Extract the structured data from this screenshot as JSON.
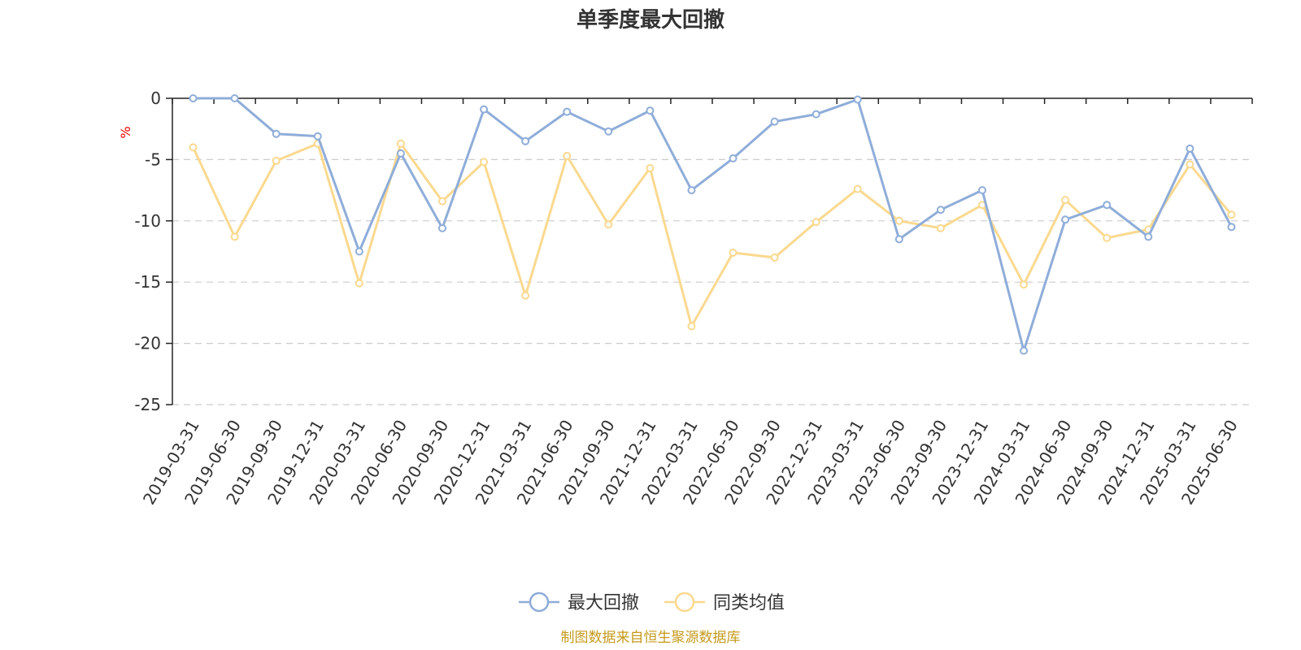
{
  "chart_data": {
    "type": "line",
    "title": "单季度最大回撤",
    "ylabel": "%",
    "ylim": [
      -25,
      0
    ],
    "yticks": [
      0,
      -5,
      -10,
      -15,
      -20,
      -25
    ],
    "grid": true,
    "legend_position": "bottom-center",
    "categories": [
      "2019-03-31",
      "2019-06-30",
      "2019-09-30",
      "2019-12-31",
      "2020-03-31",
      "2020-06-30",
      "2020-09-30",
      "2020-12-31",
      "2021-03-31",
      "2021-06-30",
      "2021-09-30",
      "2021-12-31",
      "2022-03-31",
      "2022-06-30",
      "2022-09-30",
      "2022-12-31",
      "2023-03-31",
      "2023-06-30",
      "2023-09-30",
      "2023-12-31",
      "2024-03-31",
      "2024-06-30",
      "2024-09-30",
      "2024-12-31",
      "2025-03-31",
      "2025-06-30"
    ],
    "series": [
      {
        "name": "最大回撤",
        "color": "#8fadd9",
        "values": [
          0,
          0,
          -2.9,
          -3.1,
          -12.5,
          -4.5,
          -10.6,
          -0.9,
          -3.5,
          -1.1,
          -2.7,
          -1.0,
          -7.5,
          -4.9,
          -1.9,
          -1.3,
          -0.1,
          -11.5,
          -9.1,
          -7.5,
          -20.6,
          -9.9,
          -8.7,
          -11.3,
          -4.1,
          -10.5
        ]
      },
      {
        "name": "同类均值",
        "color": "#fad98f",
        "values": [
          -4.0,
          -11.3,
          -5.1,
          -3.7,
          -15.1,
          -3.7,
          -8.4,
          -5.2,
          -16.1,
          -4.7,
          -10.3,
          -5.7,
          -18.6,
          -12.6,
          -13.0,
          -10.1,
          -7.4,
          -10.0,
          -10.6,
          -8.7,
          -15.2,
          -8.3,
          -11.4,
          -10.7,
          -5.4,
          -9.5
        ]
      }
    ]
  },
  "source_text": "制图数据来自恒生聚源数据库",
  "colors": {
    "unit": "#ee0000",
    "source": "#c59a1d"
  }
}
